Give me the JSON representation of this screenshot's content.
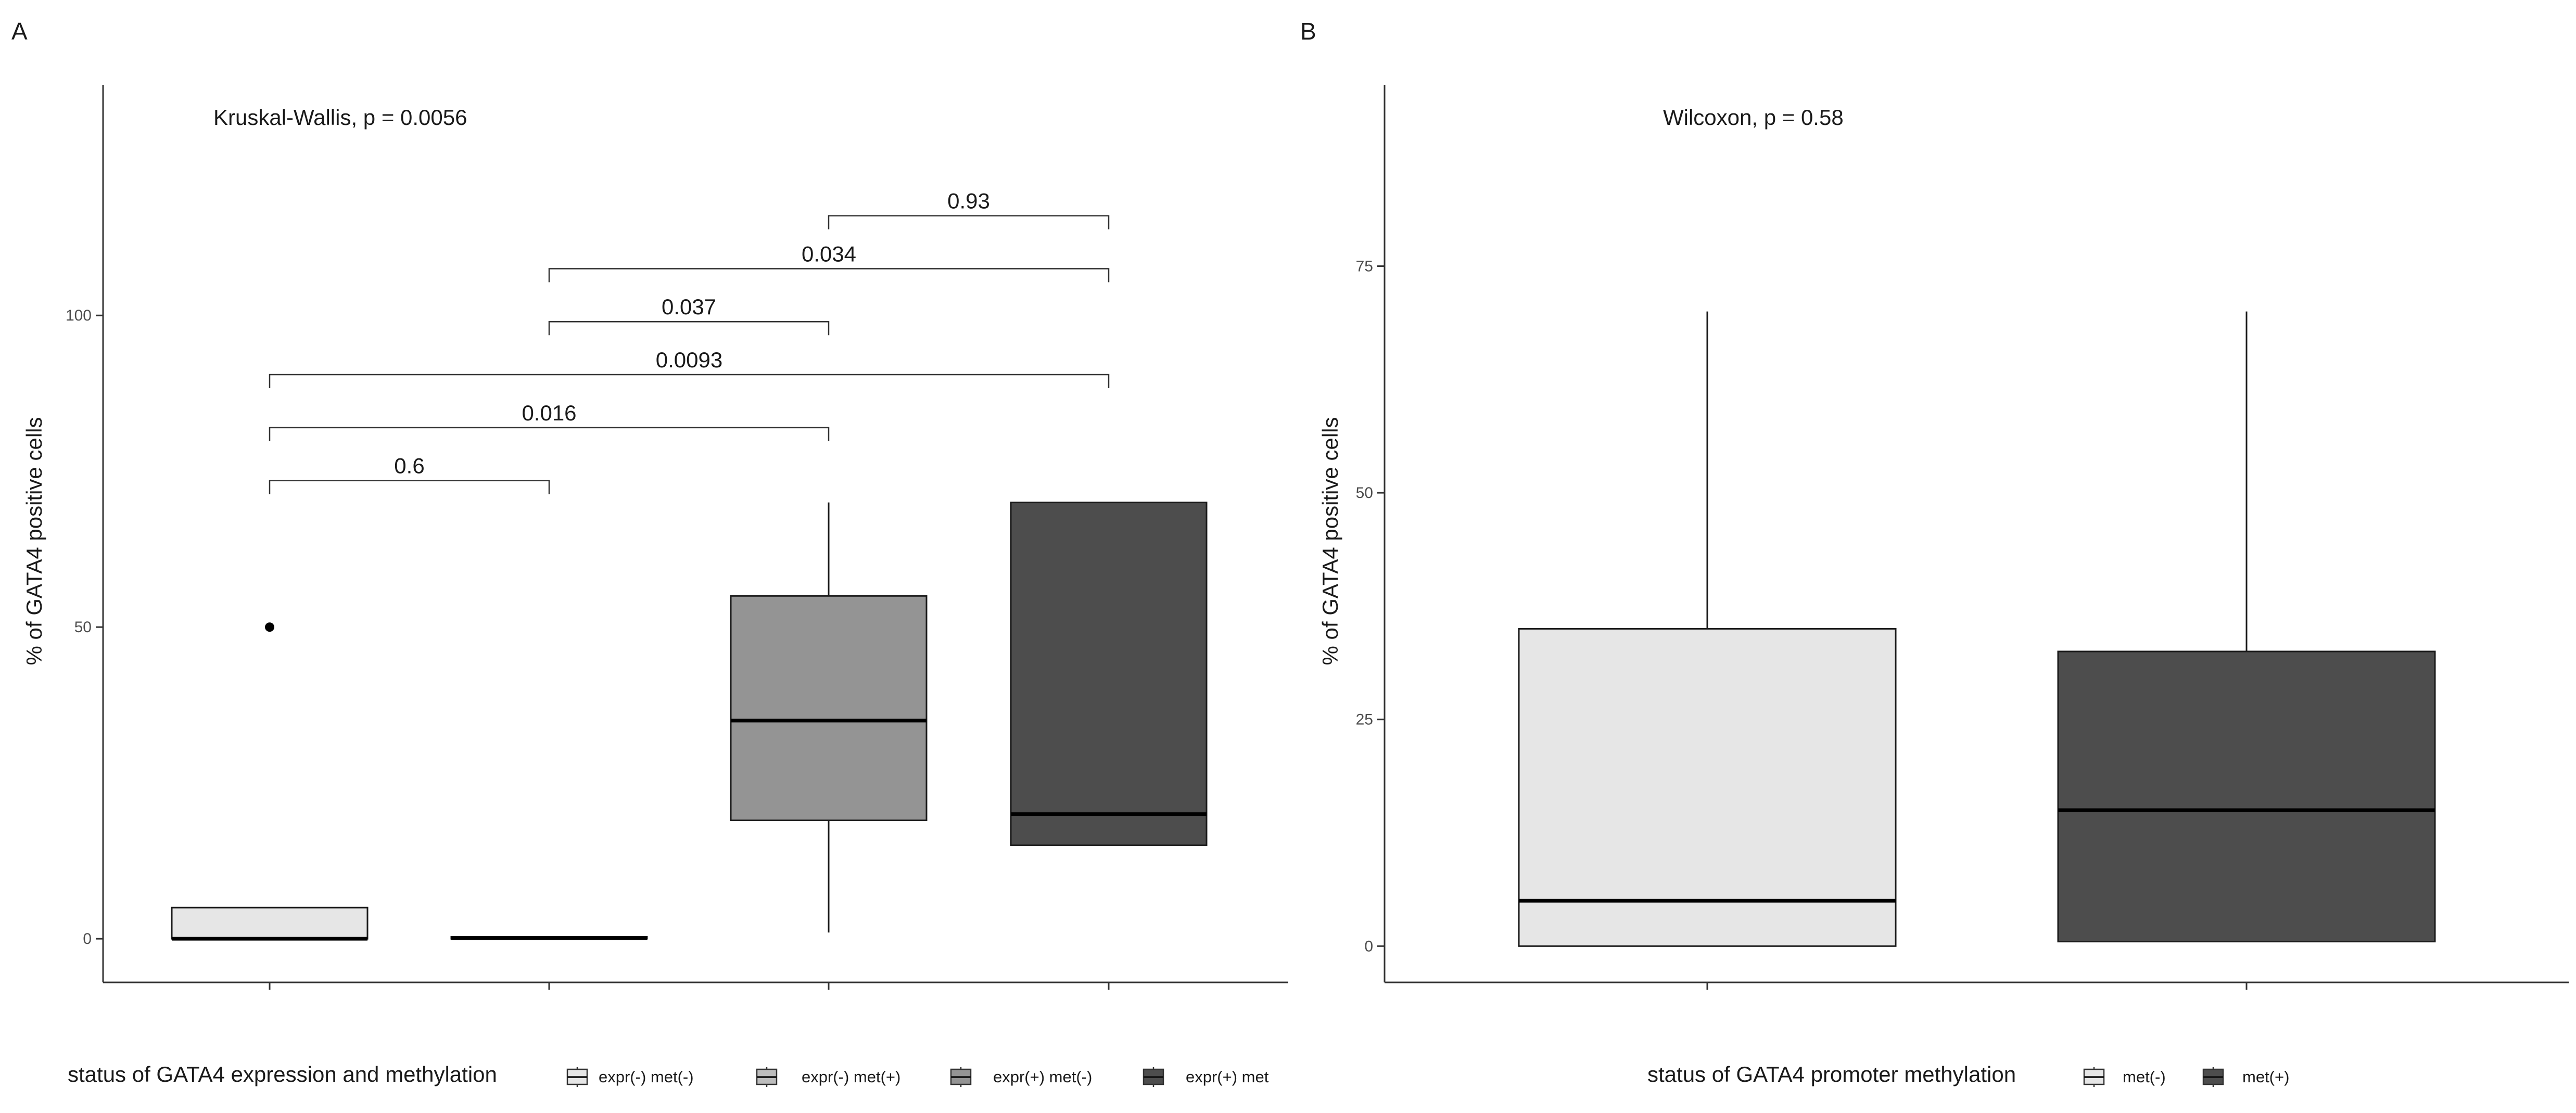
{
  "panels": [
    {
      "label": "A",
      "stat_text": "Kruskal-Wallis, p = 0.0056",
      "legend_title": "status of GATA4 expression and methylation",
      "legend_items": [
        {
          "label": "expr(-) met(-)",
          "fill": "#e6e6e6"
        },
        {
          "label": "expr(-) met(+)",
          "fill": "#bdbdbd"
        },
        {
          "label": "expr(+) met(-)",
          "fill": "#949494"
        },
        {
          "label": "expr(+) met",
          "fill": "#4d4d4d"
        }
      ]
    },
    {
      "label": "B",
      "stat_text": "Wilcoxon, p = 0.58",
      "legend_title": "status of GATA4 promoter methylation",
      "legend_items": [
        {
          "label": "met(-)",
          "fill": "#e6e6e6"
        },
        {
          "label": "met(+)",
          "fill": "#4d4d4d"
        }
      ]
    }
  ],
  "chart_data": [
    {
      "type": "boxplot",
      "panel": "A",
      "ylabel": "% of GATA4 positive cells",
      "xlabel": "",
      "ylim": [
        -7,
        137
      ],
      "yticks": [
        0,
        50,
        100
      ],
      "yticklabels": [
        "0",
        "50",
        "100"
      ],
      "groups": [
        {
          "name": "expr(-) met(-)",
          "fill": "#e6e6e6",
          "min": 0,
          "q1": 0,
          "median": 0,
          "q3": 5,
          "max": 5,
          "outliers": [
            50
          ]
        },
        {
          "name": "expr(-) met(+)",
          "fill": "#bdbdbd",
          "min": 0,
          "q1": 0,
          "median": 0.1,
          "q3": 0.3,
          "max": 0.3,
          "outliers": []
        },
        {
          "name": "expr(+) met(-)",
          "fill": "#949494",
          "min": 1,
          "q1": 19,
          "median": 35,
          "q3": 55,
          "max": 70,
          "outliers": []
        },
        {
          "name": "expr(+) met",
          "fill": "#4d4d4d",
          "min": 15,
          "q1": 15,
          "median": 20,
          "q3": 70,
          "max": 70,
          "outliers": []
        }
      ],
      "comparisons": [
        {
          "from": 1,
          "to": 2,
          "p_label": "0.6",
          "y": 73.5
        },
        {
          "from": 1,
          "to": 3,
          "p_label": "0.016",
          "y": 82
        },
        {
          "from": 1,
          "to": 4,
          "p_label": "0.0093",
          "y": 90.5
        },
        {
          "from": 2,
          "to": 3,
          "p_label": "0.037",
          "y": 99
        },
        {
          "from": 2,
          "to": 4,
          "p_label": "0.034",
          "y": 107.5
        },
        {
          "from": 3,
          "to": 4,
          "p_label": "0.93",
          "y": 116
        }
      ],
      "annotation": "Kruskal-Wallis, p = 0.0056"
    },
    {
      "type": "boxplot",
      "panel": "B",
      "ylabel": "% of GATA4 positive cells",
      "xlabel": "",
      "ylim": [
        -4,
        95
      ],
      "yticks": [
        0,
        25,
        50,
        75
      ],
      "yticklabels": [
        "0",
        "25",
        "50",
        "75"
      ],
      "groups": [
        {
          "name": "met(-)",
          "fill": "#e6e6e6",
          "min": 0,
          "q1": 0,
          "median": 5,
          "q3": 35,
          "max": 70,
          "outliers": []
        },
        {
          "name": "met(+)",
          "fill": "#4d4d4d",
          "min": 0.5,
          "q1": 0.5,
          "median": 15,
          "q3": 32.5,
          "max": 70,
          "outliers": []
        }
      ],
      "comparisons": [],
      "annotation": "Wilcoxon, p = 0.58"
    }
  ]
}
